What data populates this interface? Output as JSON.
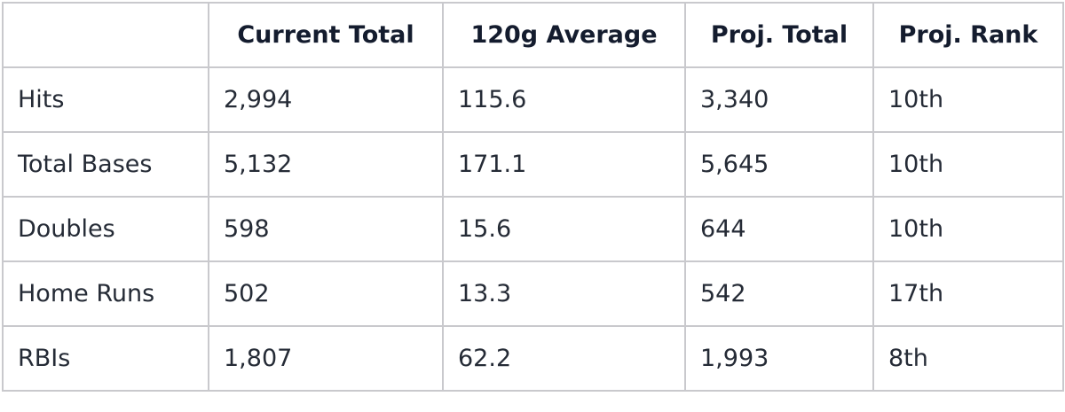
{
  "table": {
    "headers": [
      "",
      "Current Total",
      "120g Average",
      "Proj. Total",
      "Proj. Rank"
    ],
    "rows": [
      {
        "stat": "Hits",
        "current_total": "2,994",
        "avg_120g": "115.6",
        "proj_total": "3,340",
        "proj_rank": "10th"
      },
      {
        "stat": "Total Bases",
        "current_total": "5,132",
        "avg_120g": "171.1",
        "proj_total": "5,645",
        "proj_rank": "10th"
      },
      {
        "stat": "Doubles",
        "current_total": "598",
        "avg_120g": "15.6",
        "proj_total": "644",
        "proj_rank": "10th"
      },
      {
        "stat": "Home Runs",
        "current_total": "502",
        "avg_120g": "13.3",
        "proj_total": "542",
        "proj_rank": "17th"
      },
      {
        "stat": "RBIs",
        "current_total": "1,807",
        "avg_120g": "62.2",
        "proj_total": "1,993",
        "proj_rank": "8th"
      }
    ]
  },
  "colors": {
    "border": "#c9c9cd",
    "header_text": "#141c2e",
    "body_text": "#252b36",
    "background": "#ffffff"
  }
}
